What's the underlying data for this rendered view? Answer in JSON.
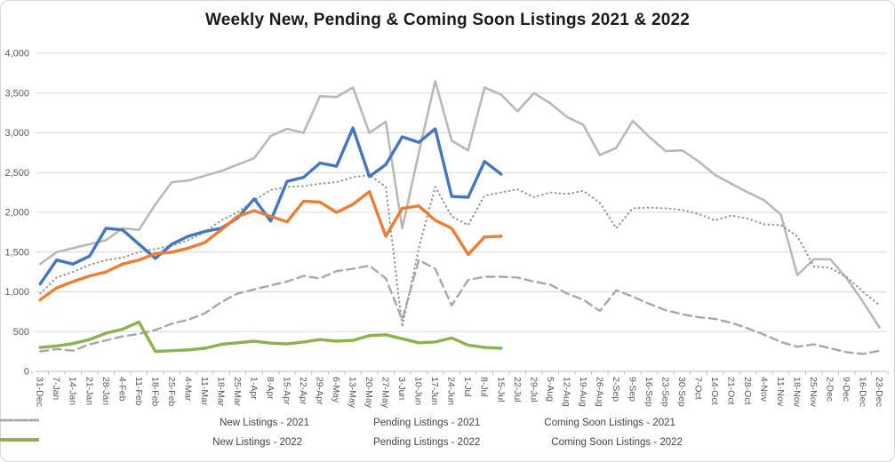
{
  "window": {
    "background": "#ffffff",
    "border_color": "#d7d7d7"
  },
  "chart_data": {
    "type": "line",
    "title": "Weekly New, Pending & Coming Soon Listings 2021 & 2022",
    "xlabel": "",
    "ylabel": "",
    "ylim": [
      0,
      4000
    ],
    "yticks": [
      0,
      500,
      1000,
      1500,
      2000,
      2500,
      3000,
      3500,
      4000
    ],
    "ytick_labels": [
      "0",
      "500",
      "1,000",
      "1,500",
      "2,000",
      "2,500",
      "3,000",
      "3,500",
      "4,000"
    ],
    "grid": true,
    "legend_position": "bottom",
    "x": [
      "31-Dec",
      "7-Jan",
      "14-Jan",
      "21-Jan",
      "28-Jan",
      "4-Feb",
      "11-Feb",
      "18-Feb",
      "25-Feb",
      "4-Mar",
      "11-Mar",
      "18-Mar",
      "25-Mar",
      "1-Apr",
      "8-Apr",
      "15-Apr",
      "22-Apr",
      "29-Apr",
      "6-May",
      "13-May",
      "20-May",
      "27-May",
      "3-Jun",
      "10-Jun",
      "17-Jun",
      "24-Jun",
      "1-Jul",
      "8-Jul",
      "15-Jul",
      "22-Jul",
      "29-Jul",
      "5-Aug",
      "12-Aug",
      "19-Aug",
      "26-Aug",
      "2-Sep",
      "9-Sep",
      "16-Sep",
      "23-Sep",
      "30-Sep",
      "7-Oct",
      "14-Oct",
      "21-Oct",
      "28-Oct",
      "4-Nov",
      "11-Nov",
      "18-Nov",
      "25-Nov",
      "2-Dec",
      "9-Dec",
      "16-Dec",
      "23-Dec"
    ],
    "series": [
      {
        "name": "New Listings - 2021",
        "color": "#b9b9b9",
        "style": "solid",
        "width": 2.6,
        "values": [
          1350,
          1500,
          1550,
          1600,
          1650,
          1800,
          1780,
          2100,
          2380,
          2400,
          2460,
          2520,
          2600,
          2680,
          2960,
          3050,
          3000,
          3460,
          3450,
          3570,
          3000,
          3140,
          1800,
          2750,
          3650,
          2900,
          2780,
          3570,
          3480,
          3270,
          3500,
          3370,
          3200,
          3100,
          2720,
          2810,
          3150,
          2950,
          2770,
          2780,
          2640,
          2470,
          2360,
          2250,
          2150,
          1970,
          1210,
          1410,
          1410,
          1170,
          870,
          550
        ]
      },
      {
        "name": "Pending Listings - 2021",
        "color": "#969696",
        "style": "dotted",
        "width": 2.1,
        "values": [
          980,
          1180,
          1250,
          1340,
          1400,
          1430,
          1500,
          1540,
          1580,
          1650,
          1750,
          1900,
          2000,
          2150,
          2280,
          2320,
          2330,
          2360,
          2380,
          2440,
          2470,
          2320,
          560,
          1550,
          2320,
          1950,
          1840,
          2210,
          2250,
          2290,
          2190,
          2250,
          2230,
          2270,
          2120,
          1800,
          2050,
          2060,
          2050,
          2030,
          1980,
          1900,
          1960,
          1920,
          1850,
          1840,
          1700,
          1320,
          1300,
          1185,
          1000,
          830
        ]
      },
      {
        "name": "Coming Soon Listings - 2021",
        "color": "#a8a8a8",
        "style": "dashed",
        "width": 2.4,
        "values": [
          250,
          280,
          260,
          340,
          390,
          440,
          470,
          520,
          600,
          650,
          730,
          870,
          980,
          1030,
          1080,
          1130,
          1200,
          1170,
          1260,
          1290,
          1330,
          1170,
          650,
          1400,
          1290,
          830,
          1150,
          1190,
          1190,
          1180,
          1130,
          1090,
          980,
          900,
          760,
          1020,
          940,
          850,
          770,
          720,
          680,
          660,
          610,
          540,
          460,
          370,
          310,
          340,
          290,
          240,
          220,
          260
        ]
      },
      {
        "name": "New Listings - 2022",
        "color": "#4377c0",
        "style": "solid",
        "width": 3.4,
        "values": [
          1100,
          1400,
          1350,
          1450,
          1800,
          1780,
          1600,
          1420,
          1600,
          1700,
          1760,
          1800,
          1930,
          2170,
          1890,
          2390,
          2440,
          2620,
          2580,
          3060,
          2450,
          2600,
          2950,
          2880,
          3050,
          2200,
          2190,
          2640,
          2480
        ]
      },
      {
        "name": "Pending Listings - 2022",
        "color": "#ee7d31",
        "style": "solid",
        "width": 3.4,
        "values": [
          900,
          1050,
          1130,
          1200,
          1250,
          1350,
          1400,
          1480,
          1500,
          1550,
          1620,
          1780,
          1950,
          2020,
          1950,
          1880,
          2140,
          2130,
          2000,
          2100,
          2260,
          1700,
          2050,
          2080,
          1900,
          1800,
          1470,
          1690,
          1700
        ]
      },
      {
        "name": "Coming Soon Listings - 2022",
        "color": "#8db14d",
        "style": "solid",
        "width": 3.4,
        "values": [
          300,
          320,
          350,
          400,
          480,
          530,
          620,
          250,
          260,
          270,
          290,
          340,
          360,
          380,
          355,
          345,
          370,
          400,
          380,
          390,
          450,
          460,
          410,
          360,
          370,
          420,
          330,
          300,
          290
        ]
      }
    ],
    "legend_rows": [
      [
        0,
        1,
        2
      ],
      [
        3,
        4,
        5
      ]
    ],
    "axis_color": "#bfbfbf",
    "gridline_color": "#d9d9d9",
    "tick_label_color": "#595959"
  }
}
